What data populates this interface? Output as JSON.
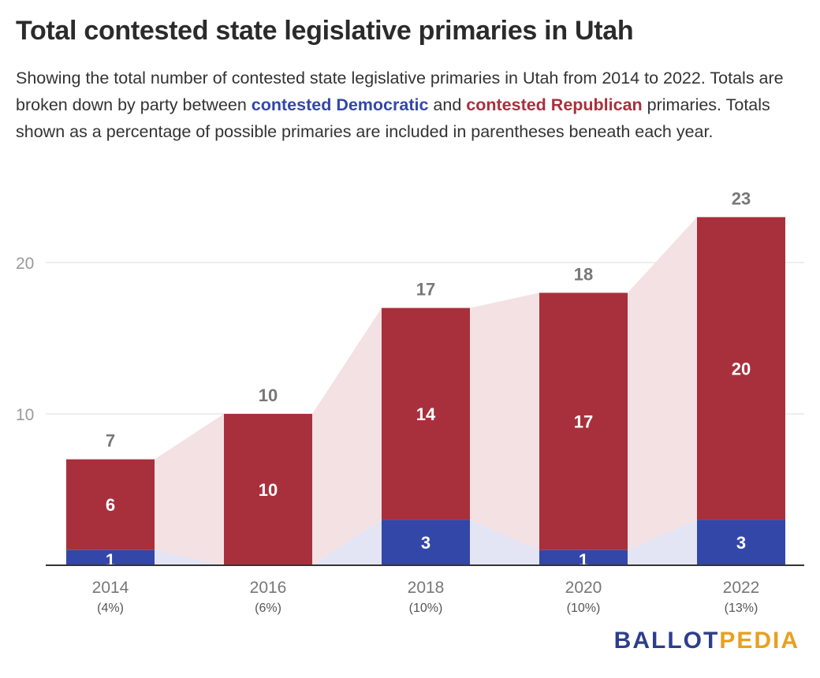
{
  "title": "Total contested state legislative primaries in Utah",
  "subtitle": {
    "part1": "Showing the total number of contested state legislative primaries in Utah from 2014 to 2022. Totals are broken down by party between ",
    "dem_label": "contested Democratic",
    "part2": " and ",
    "rep_label": "contested Republican",
    "part3": " primaries. Totals shown as a percentage of possible primaries are included in parentheses beneath each year."
  },
  "logo": {
    "part1": "BALLOT",
    "part2": "PEDIA"
  },
  "colors": {
    "democratic": "#3347a8",
    "republican": "#a8303c",
    "dem_band": "#e3e4f4",
    "rep_band": "#f4e1e3"
  },
  "chart_data": {
    "type": "bar",
    "stacked": true,
    "categories": [
      "2014",
      "2016",
      "2018",
      "2020",
      "2022"
    ],
    "sublabels": [
      "(4%)",
      "(6%)",
      "(10%)",
      "(10%)",
      "(13%)"
    ],
    "series": [
      {
        "name": "contested Democratic",
        "values": [
          1,
          0,
          3,
          1,
          3
        ]
      },
      {
        "name": "contested Republican",
        "values": [
          6,
          10,
          14,
          17,
          20
        ]
      }
    ],
    "totals": [
      7,
      10,
      17,
      18,
      23
    ],
    "ylim": [
      0,
      23
    ],
    "yticks": [
      10,
      20
    ],
    "grid": true
  }
}
